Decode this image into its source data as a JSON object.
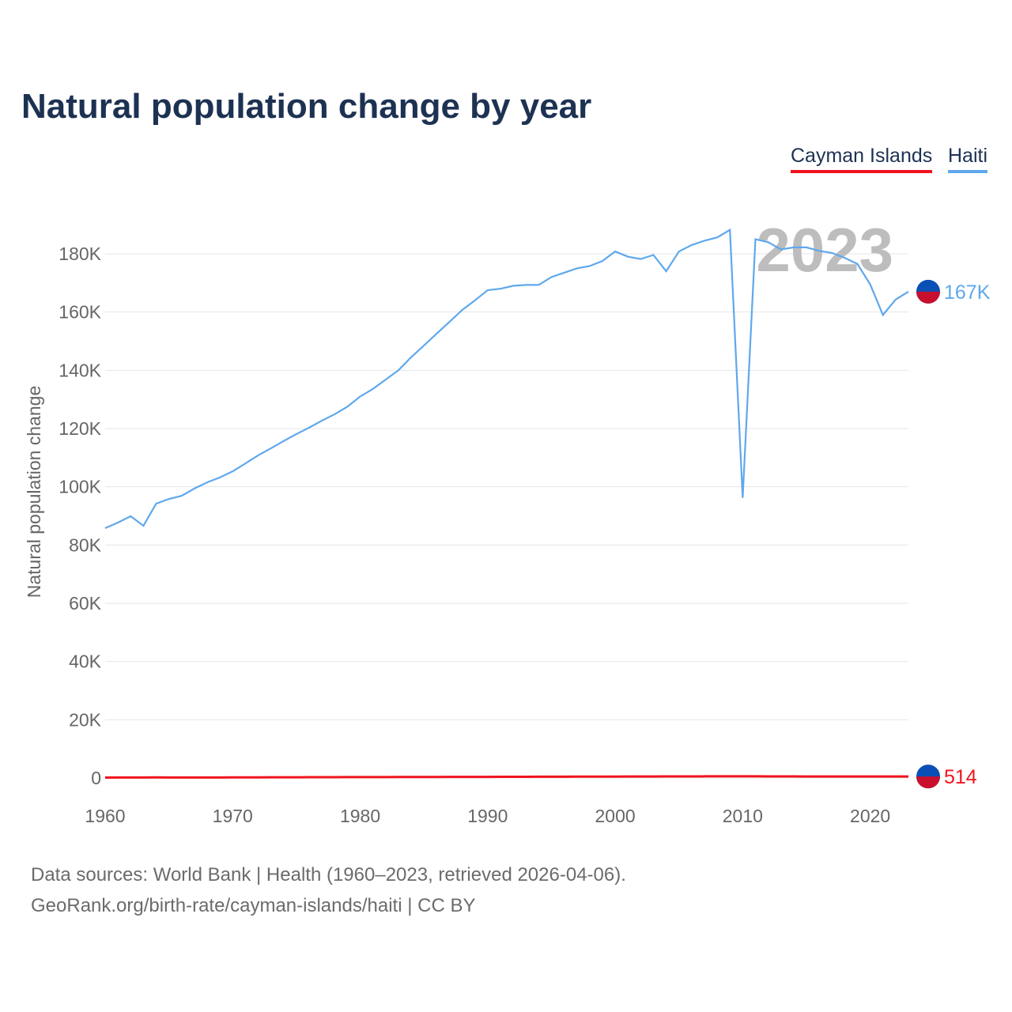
{
  "title": "Natural population change by year",
  "legend": [
    "Cayman Islands",
    "Haiti"
  ],
  "footer": {
    "line1": "Data sources: World Bank | Health (1960–2023, retrieved 2026-04-06).",
    "line2": "GeoRank.org/birth-rate/cayman-islands/haiti | CC BY"
  },
  "chart_data": {
    "type": "line",
    "title": "Natural population change by year",
    "ylabel": "Natural population change",
    "xlabel": "",
    "xlim": [
      1960,
      2023
    ],
    "ylim": [
      0,
      180000
    ],
    "x_ticks": [
      "1960",
      "1970",
      "1980",
      "1990",
      "2000",
      "2010",
      "2020"
    ],
    "y_ticks": [
      "0",
      "20K",
      "40K",
      "60K",
      "80K",
      "100K",
      "120K",
      "140K",
      "160K",
      "180K"
    ],
    "year_watermark": "2023",
    "grid": true,
    "legend_placement": "top-right",
    "series": [
      {
        "name": "Haiti",
        "color": "#5fa8ec",
        "end_label": "167K",
        "flag_colors": [
          "#0a4fb5",
          "#c8102e"
        ],
        "values": [
          85800,
          87700,
          89900,
          86600,
          94200,
          95800,
          96900,
          99400,
          101500,
          103200,
          105300,
          108000,
          110800,
          113200,
          115700,
          118100,
          120300,
          122700,
          124900,
          127500,
          131000,
          133600,
          136800,
          140000,
          144500,
          148500,
          152600,
          156600,
          160700,
          164000,
          167500,
          168000,
          169000,
          169300,
          169300,
          172000,
          173500,
          175000,
          175800,
          177500,
          180800,
          179000,
          178200,
          179600,
          174000,
          180800,
          183000,
          184500,
          185600,
          188200,
          96200,
          185000,
          184000,
          181500,
          182200,
          182200,
          181000,
          180300,
          178600,
          176500,
          169500,
          159000,
          164300,
          167000
        ]
      },
      {
        "name": "Cayman Islands",
        "color": "#f0141e",
        "end_label": "514",
        "flag_colors": [
          "#0a4fb5",
          "#c8102e"
        ],
        "values": [
          150,
          160,
          170,
          180,
          190,
          180,
          170,
          160,
          170,
          180,
          200,
          210,
          220,
          230,
          240,
          250,
          260,
          270,
          280,
          290,
          300,
          310,
          320,
          330,
          330,
          340,
          350,
          360,
          370,
          380,
          390,
          400,
          410,
          420,
          430,
          440,
          450,
          460,
          470,
          480,
          490,
          500,
          510,
          520,
          530,
          540,
          550,
          560,
          570,
          580,
          570,
          560,
          550,
          540,
          530,
          520,
          510,
          500,
          510,
          520,
          520,
          510,
          510,
          514
        ]
      }
    ]
  }
}
